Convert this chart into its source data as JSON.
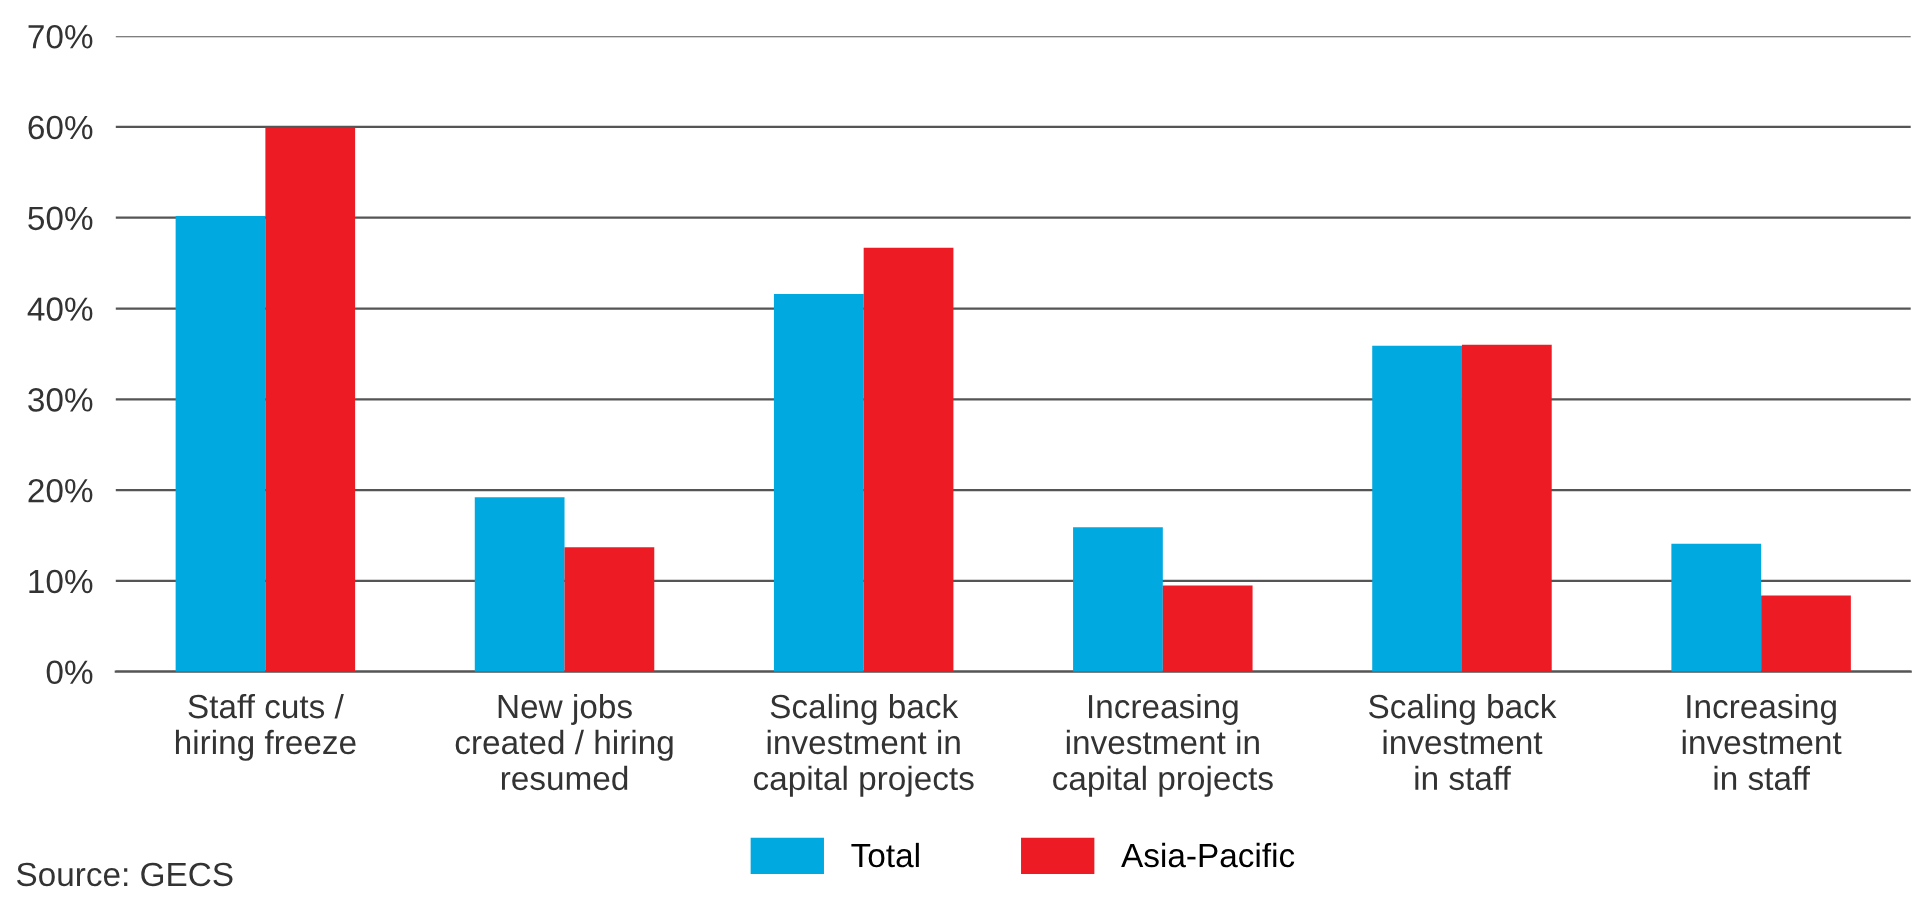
{
  "chart_data": {
    "type": "bar",
    "categories": [
      "Staff cuts /\nhiring freeze",
      "New jobs\ncreated / hiring\nresumed",
      "Scaling back\ninvestment in\ncapital projects",
      "Increasing\ninvestment in\ncapital projects",
      "Scaling back\ninvestment\nin staff",
      "Increasing\ninvestment\nin staff"
    ],
    "series": [
      {
        "name": "Total",
        "color": "#00a9e0",
        "values": [
          50.2,
          19.2,
          41.6,
          15.9,
          35.9,
          14.1
        ]
      },
      {
        "name": "Asia-Pacific",
        "color": "#ed1c24",
        "values": [
          59.9,
          13.7,
          46.7,
          9.5,
          36,
          8.4
        ]
      }
    ],
    "ylim": [
      0,
      70
    ],
    "yticks": [
      {
        "value": 0,
        "label": "0%"
      },
      {
        "value": 10,
        "label": "10%"
      },
      {
        "value": 20,
        "label": "20%"
      },
      {
        "value": 30,
        "label": "30%"
      },
      {
        "value": 40,
        "label": "40%"
      },
      {
        "value": 50,
        "label": "50%"
      },
      {
        "value": 60,
        "label": "60%"
      },
      {
        "value": 70,
        "label": "70%"
      }
    ],
    "grid": "y",
    "legend": "bottom",
    "annotations": [
      "Source: GECS"
    ]
  }
}
